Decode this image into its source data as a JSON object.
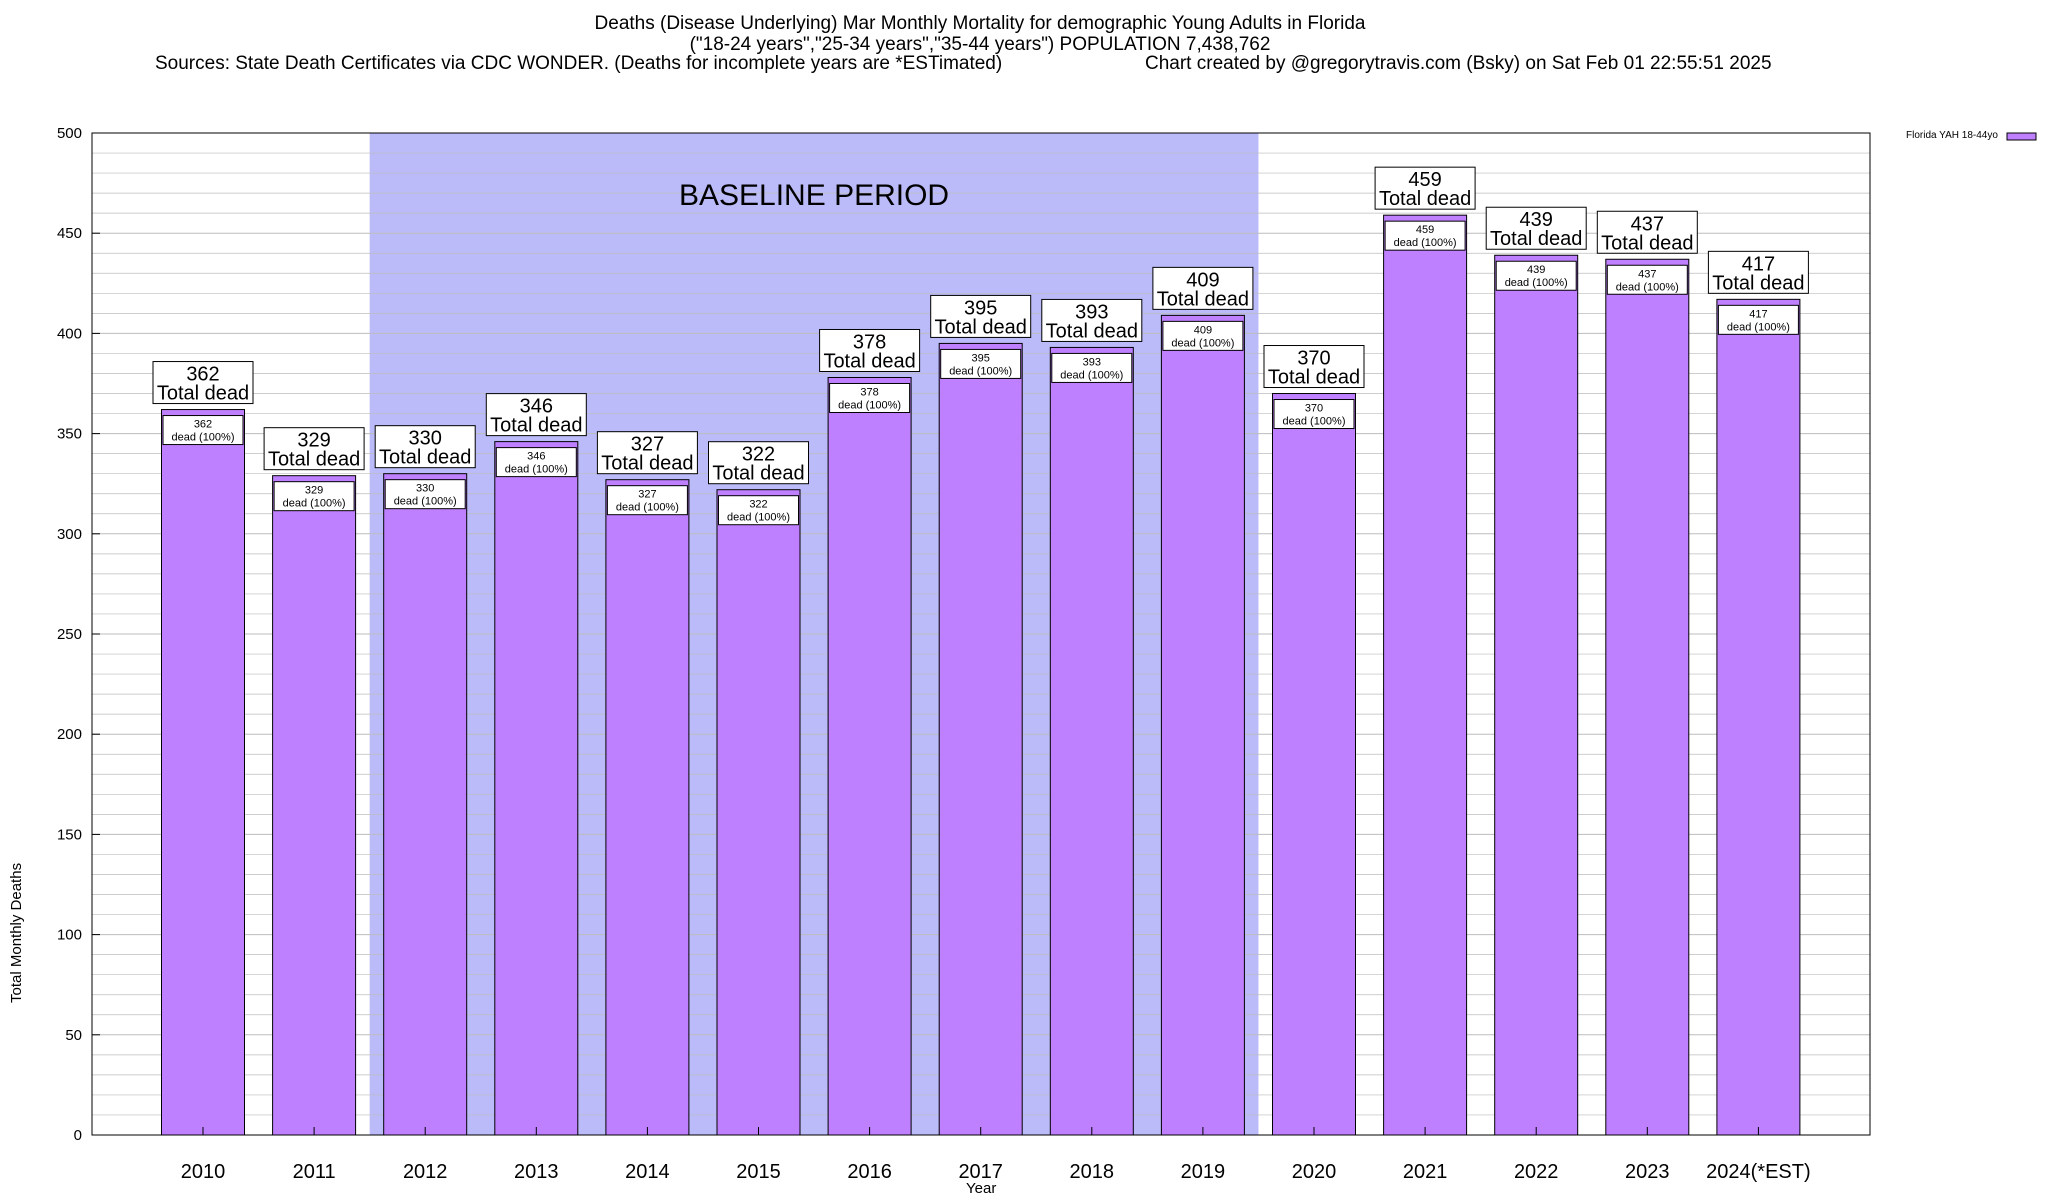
{
  "title_lines": [
    "Deaths (Disease Underlying) Mar Monthly Mortality for demographic Young Adults in Florida",
    "(\"18-24 years\",\"25-34 years\",\"35-44 years\") POPULATION 7,438,762",
    "Sources: State Death Certificates via CDC WONDER. (Deaths for incomplete years are *ESTimated)",
    "Chart created by @gregorytravis.com (Bsky) on Sat Feb 01 22:55:51 2025"
  ],
  "chart_data": {
    "type": "bar",
    "xlabel": "Year",
    "ylabel": "Total Monthly Deaths",
    "ylim": [
      0,
      500
    ],
    "yticks": [
      0,
      50,
      100,
      150,
      200,
      250,
      300,
      350,
      400,
      450,
      500
    ],
    "grid": true,
    "legend": "top-right",
    "categories": [
      "2010",
      "2011",
      "2012",
      "2013",
      "2014",
      "2015",
      "2016",
      "2017",
      "2018",
      "2019",
      "2020",
      "2021",
      "2022",
      "2023",
      "2024(*EST)"
    ],
    "series": [
      {
        "name": "Florida YAH 18-44yo",
        "values": [
          362,
          329,
          330,
          346,
          327,
          322,
          378,
          395,
          393,
          409,
          370,
          459,
          439,
          437,
          417
        ]
      }
    ],
    "total_label_suffix": "Total dead",
    "inner_label_suffix": "dead (100%)",
    "baseline_label": "BASELINE PERIOD",
    "baseline_range": [
      "2012",
      "2019"
    ],
    "colors": {
      "bar": "#bf80ff",
      "baseline": "#bbbbf9",
      "grid": "#bdbdbd"
    }
  }
}
